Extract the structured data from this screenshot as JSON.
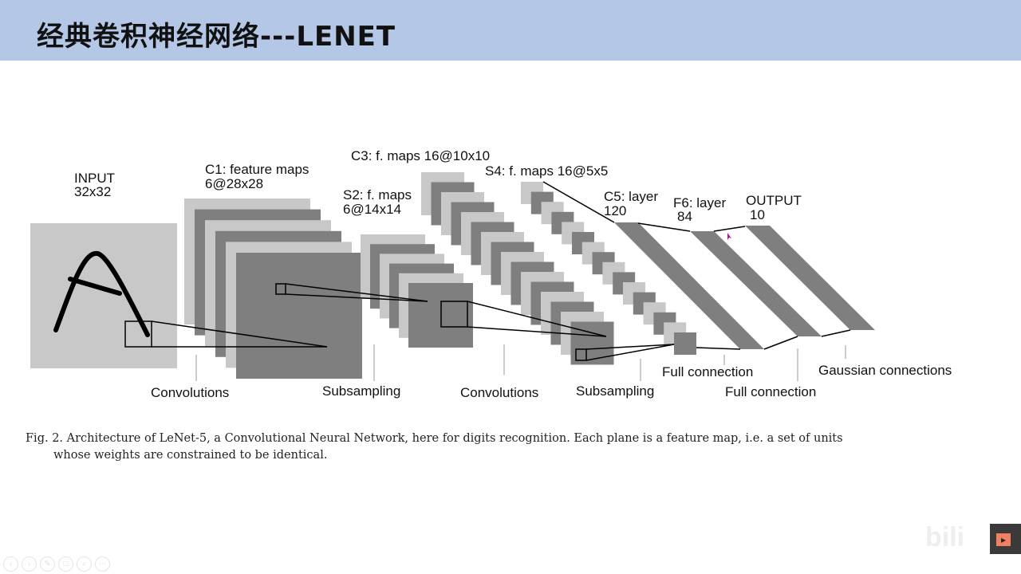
{
  "slide": {
    "title": "经典卷积神经网络---LENET"
  },
  "diagram": {
    "input_label": "INPUT",
    "input_size": "32x32",
    "c1_label": "C1: feature maps",
    "c1_size": "6@28x28",
    "s2_label": "S2: f. maps",
    "s2_size": "6@14x14",
    "c3_label": "C3: f. maps 16@10x10",
    "s4_label": "S4: f. maps 16@5x5",
    "c5_label": "C5: layer",
    "c5_size": "120",
    "f6_label": "F6: layer",
    "f6_size": "84",
    "output_label": "OUTPUT",
    "output_size": "10",
    "op_convolutions_1": "Convolutions",
    "op_subsampling_1": "Subsampling",
    "op_convolutions_2": "Convolutions",
    "op_subsampling_2": "Subsampling",
    "op_full_connection_1": "Full connection",
    "op_full_connection_2": "Full connection",
    "op_gaussian": "Gaussian connections"
  },
  "caption": {
    "line1": "Fig. 2.   Architecture of LeNet-5, a Convolutional Neural Network, here for digits recognition. Each plane is a feature map, i.e. a set of units",
    "line2": "whose weights are constrained to be identical."
  },
  "colors": {
    "title_bar": "#b4c7e7",
    "light_plane": "#c8c8c8",
    "dark_plane": "#7f7f7f"
  },
  "toolbar": {
    "icons": [
      "prev-icon",
      "next-icon",
      "pen-icon",
      "copy-icon",
      "zoom-icon",
      "more-icon"
    ]
  }
}
